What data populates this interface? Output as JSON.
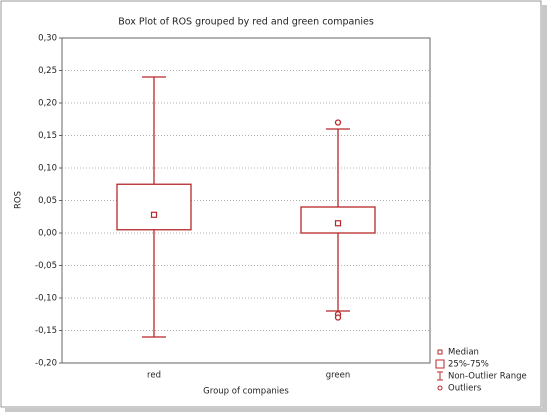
{
  "chart_data": {
    "type": "box",
    "title": "Box Plot of ROS grouped by red and green companies",
    "x_label": "Group of companies",
    "y_label": "ROS",
    "categories": [
      "red",
      "green"
    ],
    "color": "#b8282a",
    "median": [
      0.028,
      0.015
    ],
    "q1": [
      0.005,
      0.0
    ],
    "q3": [
      0.075,
      0.04
    ],
    "whisker_low": [
      -0.16,
      -0.12
    ],
    "whisker_high": [
      0.24,
      0.16
    ],
    "outliers": [
      [],
      [
        0.17,
        -0.125,
        -0.13
      ]
    ],
    "ylim": [
      -0.2,
      0.3
    ],
    "yticks": [
      {
        "value": -0.2,
        "label": "-0,20"
      },
      {
        "value": -0.15,
        "label": "-0,15"
      },
      {
        "value": -0.1,
        "label": "-0,10"
      },
      {
        "value": -0.05,
        "label": "-0,05"
      },
      {
        "value": 0,
        "label": "0,00"
      },
      {
        "value": 0.05,
        "label": "0,05"
      },
      {
        "value": 0.1,
        "label": "0,10"
      },
      {
        "value": 0.15,
        "label": "0,15"
      },
      {
        "value": 0.2,
        "label": "0,20"
      },
      {
        "value": 0.25,
        "label": "0,25"
      },
      {
        "value": 0.3,
        "label": "0,30"
      }
    ],
    "grid": true,
    "legend": [
      "Median",
      "25%-75%",
      "Non-Outlier Range",
      "Outliers"
    ]
  }
}
